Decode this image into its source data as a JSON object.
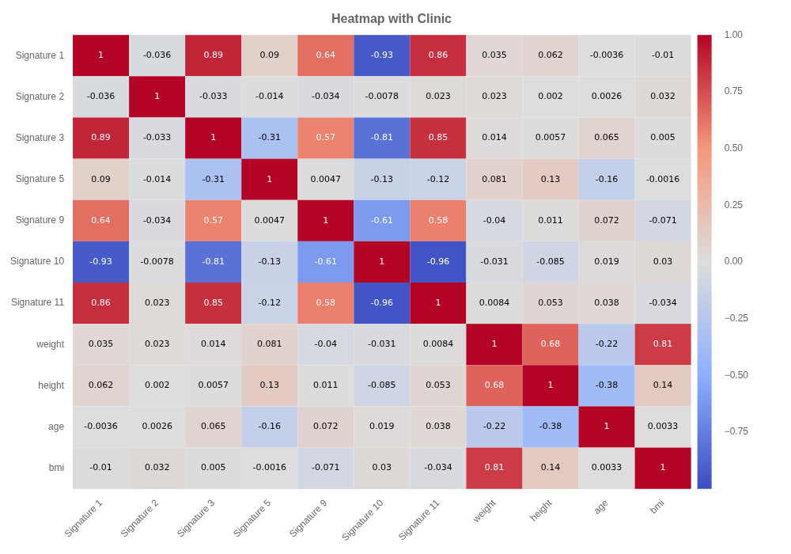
{
  "chart_data": {
    "type": "heatmap",
    "title": "Heatmap with Clinic",
    "y_categories": [
      "Signature 1",
      "Signature 2",
      "Signature 3",
      "Signature 5",
      "Signature 9",
      "Signature 10",
      "Signature 11",
      "weight",
      "height",
      "age",
      "bmi"
    ],
    "x_categories": [
      "Signature 1",
      "Signature 2",
      "Signature 3",
      "Signature 5",
      "Signature 9",
      "Signature 10",
      "Signature 11",
      "weight",
      "height",
      "age",
      "bmi"
    ],
    "values": [
      [
        1,
        -0.036,
        0.89,
        0.09,
        0.64,
        -0.93,
        0.86,
        0.035,
        0.062,
        -0.0036,
        -0.01
      ],
      [
        -0.036,
        1,
        -0.033,
        -0.014,
        -0.034,
        -0.0078,
        0.023,
        0.023,
        0.002,
        0.0026,
        0.032
      ],
      [
        0.89,
        -0.033,
        1,
        -0.31,
        0.57,
        -0.81,
        0.85,
        0.014,
        0.0057,
        0.065,
        0.005
      ],
      [
        0.09,
        -0.014,
        -0.31,
        1,
        0.0047,
        -0.13,
        -0.12,
        0.081,
        0.13,
        -0.16,
        -0.0016
      ],
      [
        0.64,
        -0.034,
        0.57,
        0.0047,
        1,
        -0.61,
        0.58,
        -0.04,
        0.011,
        0.072,
        -0.071
      ],
      [
        -0.93,
        -0.0078,
        -0.81,
        -0.13,
        -0.61,
        1,
        -0.96,
        -0.031,
        -0.085,
        0.019,
        0.03
      ],
      [
        0.86,
        0.023,
        0.85,
        -0.12,
        0.58,
        -0.96,
        1,
        0.0084,
        0.053,
        0.038,
        -0.034
      ],
      [
        0.035,
        0.023,
        0.014,
        0.081,
        -0.04,
        -0.031,
        0.0084,
        1,
        0.68,
        -0.22,
        0.81
      ],
      [
        0.062,
        0.002,
        0.0057,
        0.13,
        0.011,
        -0.085,
        0.053,
        0.68,
        1,
        -0.38,
        0.14
      ],
      [
        -0.0036,
        0.0026,
        0.065,
        -0.16,
        0.072,
        0.019,
        0.038,
        -0.22,
        -0.38,
        1,
        0.0033
      ],
      [
        -0.01,
        0.032,
        0.005,
        -0.0016,
        -0.071,
        0.03,
        -0.034,
        0.81,
        0.14,
        0.0033,
        1
      ]
    ],
    "colorbar_lim": [
      -1.0,
      1.0
    ],
    "colorbar_ticks": [
      {
        "value": 1.0,
        "label": "1.00"
      },
      {
        "value": 0.75,
        "label": "0.75"
      },
      {
        "value": 0.5,
        "label": "0.50"
      },
      {
        "value": 0.25,
        "label": "0.25"
      },
      {
        "value": 0.0,
        "label": "0.00"
      },
      {
        "value": -0.25,
        "label": "−0.25"
      },
      {
        "value": -0.5,
        "label": "−0.50"
      },
      {
        "value": -0.75,
        "label": "−0.75"
      }
    ],
    "data_labels": true,
    "grid": false
  }
}
